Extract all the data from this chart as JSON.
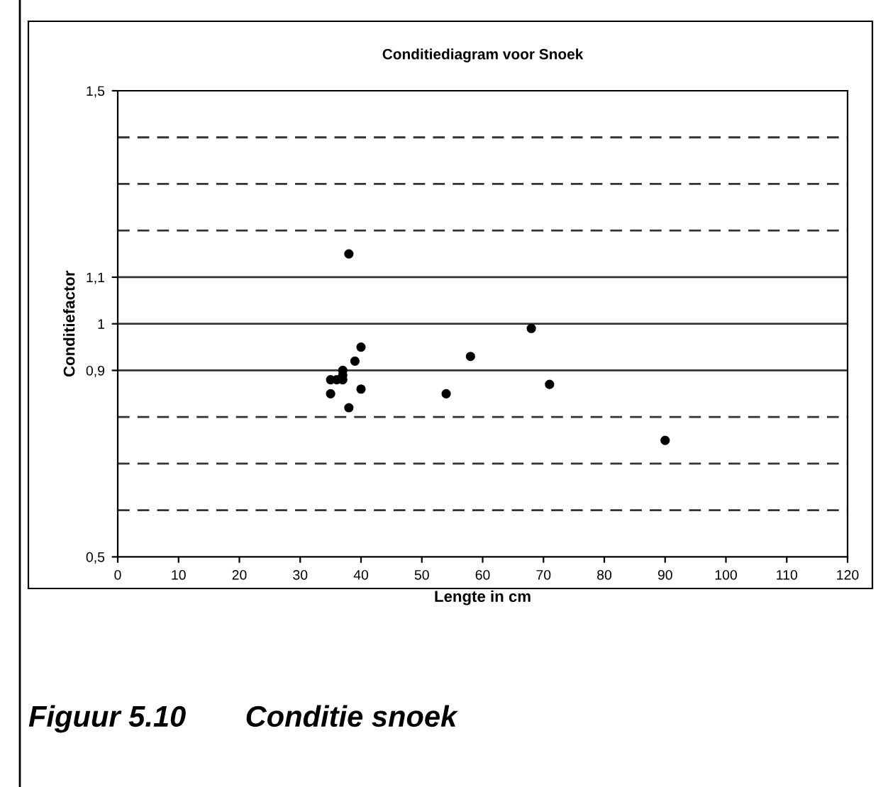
{
  "chart_data": {
    "type": "scatter",
    "title": "Conditiediagram voor Snoek",
    "xlabel": "Lengte in cm",
    "ylabel": "Conditiefactor",
    "x": [
      38,
      68,
      40,
      39,
      58,
      37,
      37,
      35,
      36,
      37,
      35,
      40,
      54,
      71,
      38,
      90
    ],
    "series": [
      {
        "color": "#000000",
        "values": [
          1.15,
          0.99,
          0.95,
          0.92,
          0.93,
          0.9,
          0.89,
          0.88,
          0.88,
          0.88,
          0.85,
          0.86,
          0.85,
          0.87,
          0.82,
          0.75
        ]
      }
    ],
    "marker": "circle",
    "grid": false,
    "xlim": [
      0,
      120
    ],
    "xticks": [
      0,
      10,
      20,
      30,
      40,
      50,
      60,
      70,
      80,
      90,
      100,
      110,
      120
    ],
    "ylim": [
      0.5,
      1.5
    ],
    "yticks": [
      {
        "value": 0.5,
        "label": "0,5"
      },
      {
        "value": 0.9,
        "label": "0,9"
      },
      {
        "value": 1,
        "label": "1"
      },
      {
        "value": 1.1,
        "label": "1,1"
      },
      {
        "value": 1.5,
        "label": "1,5"
      }
    ],
    "ref_lines": [
      {
        "axis": "y",
        "value": 0.6,
        "line_style": "dashed"
      },
      {
        "axis": "y",
        "value": 0.7,
        "line_style": "dashed"
      },
      {
        "axis": "y",
        "value": 0.8,
        "line_style": "dashed"
      },
      {
        "axis": "y",
        "value": 0.9,
        "line_style": "solid"
      },
      {
        "axis": "y",
        "value": 1.0,
        "line_style": "solid"
      },
      {
        "axis": "y",
        "value": 1.1,
        "line_style": "solid"
      },
      {
        "axis": "y",
        "value": 1.2,
        "line_style": "dashed"
      },
      {
        "axis": "y",
        "value": 1.3,
        "line_style": "dashed"
      },
      {
        "axis": "y",
        "value": 1.4,
        "line_style": "dashed"
      }
    ],
    "annotations": [
      "Figuur 5.10  Conditie snoek"
    ]
  }
}
